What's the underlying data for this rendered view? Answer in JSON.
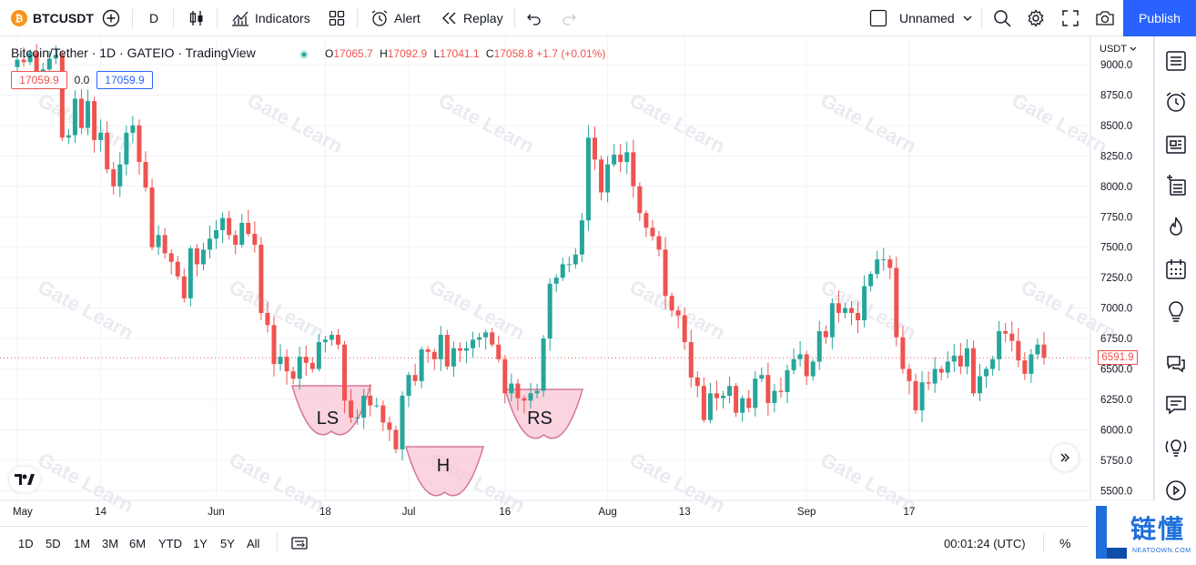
{
  "toolbar": {
    "symbol": "BTCUSDT",
    "interval": "D",
    "indicators_label": "Indicators",
    "alert_label": "Alert",
    "replay_label": "Replay",
    "layout_name": "Unnamed",
    "publish_label": "Publish"
  },
  "legend": {
    "title": "Bitcoin/Tether · 1D · GATEIO · TradingView",
    "o_key": "O",
    "o_val": "17065.7",
    "h_key": "H",
    "h_val": "17092.9",
    "l_key": "L",
    "l_val": "17041.1",
    "c_key": "C",
    "c_val": "17058.8 +1.7 (+0.01%)",
    "bid": "17059.9",
    "spread": "0.0",
    "ask": "17059.9"
  },
  "watermark": "Gate Learn",
  "currency": "USDT",
  "last_price": "6591.9",
  "bottom": {
    "ranges": [
      "1D",
      "5D",
      "1M",
      "3M",
      "6M",
      "YTD",
      "1Y",
      "5Y",
      "All"
    ],
    "time": "00:01:24 (UTC)",
    "percent": "%"
  },
  "brand": {
    "cn": "链懂",
    "en": "NEATDOWN.COM"
  },
  "colors": {
    "up": "#26a69a",
    "down": "#ef5350",
    "pattern_fill": "#f8c6d4",
    "pattern_stroke": "#d4789a",
    "accent": "#2962ff"
  },
  "chart_data": {
    "type": "candlestick",
    "y_unit": "USDT",
    "ylim": [
      5500,
      9000
    ],
    "y_ticks": [
      9000,
      8750,
      8500,
      8250,
      8000,
      7750,
      7500,
      7250,
      7000,
      6750,
      6500,
      6250,
      6000,
      5750,
      5500
    ],
    "x_ticks": [
      {
        "label": "May",
        "day": 0
      },
      {
        "label": "14",
        "day": 13
      },
      {
        "label": "Jun",
        "day": 31
      },
      {
        "label": "18",
        "day": 48
      },
      {
        "label": "Jul",
        "day": 61
      },
      {
        "label": "16",
        "day": 76
      },
      {
        "label": "Aug",
        "day": 92
      },
      {
        "label": "13",
        "day": 104
      },
      {
        "label": "Sep",
        "day": 123
      },
      {
        "label": "17",
        "day": 139
      }
    ],
    "closes": [
      9040,
      9020,
      9100,
      8880,
      8960,
      9050,
      9080,
      8400,
      8420,
      8720,
      8480,
      8700,
      8380,
      8440,
      8140,
      8000,
      8180,
      8440,
      8500,
      8200,
      7990,
      7500,
      7600,
      7450,
      7380,
      7260,
      7080,
      7490,
      7360,
      7480,
      7570,
      7640,
      7740,
      7600,
      7520,
      7700,
      7610,
      7520,
      6960,
      6860,
      6540,
      6600,
      6480,
      6420,
      6600,
      6550,
      6500,
      6720,
      6740,
      6780,
      6700,
      6240,
      6100,
      6100,
      6280,
      6200,
      6200,
      6060,
      6000,
      5840,
      6280,
      6450,
      6400,
      6660,
      6640,
      6580,
      6780,
      6520,
      6670,
      6650,
      6670,
      6740,
      6760,
      6800,
      6700,
      6580,
      6300,
      6380,
      6260,
      6240,
      6300,
      6320,
      6750,
      7200,
      7250,
      7360,
      7360,
      7440,
      7720,
      8400,
      8220,
      7950,
      8180,
      8260,
      8200,
      8280,
      8000,
      7780,
      7660,
      7590,
      7480,
      7100,
      6980,
      6940,
      6720,
      6430,
      6360,
      6080,
      6300,
      6260,
      6280,
      6360,
      6140,
      6260,
      6180,
      6420,
      6450,
      6220,
      6320,
      6310,
      6490,
      6580,
      6620,
      6440,
      6560,
      6810,
      6760,
      7040,
      6960,
      7000,
      6960,
      6900,
      7180,
      7280,
      7400,
      7400,
      7330,
      6760,
      6500,
      6400,
      6160,
      6390,
      6380,
      6500,
      6470,
      6560,
      6610,
      6520,
      6670,
      6300,
      6440,
      6500,
      6580,
      6810,
      6790,
      6730,
      6570,
      6460,
      6620,
      6700,
      6592
    ]
  },
  "patterns": [
    {
      "label": "LS"
    },
    {
      "label": "H"
    },
    {
      "label": "RS"
    }
  ]
}
